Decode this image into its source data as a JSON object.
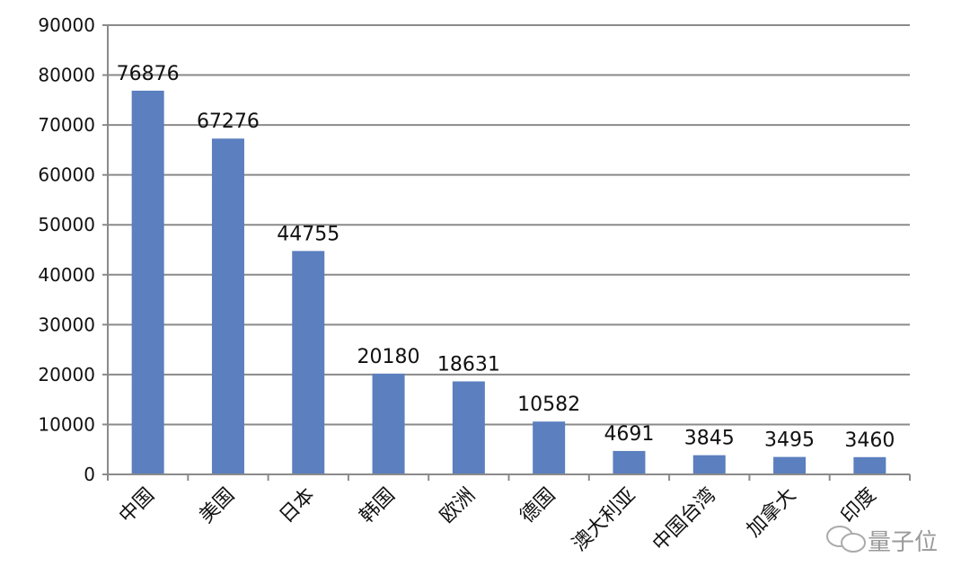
{
  "chart_data": {
    "type": "bar",
    "title": "",
    "xlabel": "",
    "ylabel": "",
    "categories": [
      "中国",
      "美国",
      "日本",
      "韩国",
      "欧洲",
      "德国",
      "澳大利亚",
      "中国台湾",
      "加拿大",
      "印度"
    ],
    "values": [
      76876,
      67276,
      44755,
      20180,
      18631,
      10582,
      4691,
      3845,
      3495,
      3460
    ],
    "ylim": [
      0,
      90000
    ],
    "yticks": [
      0,
      10000,
      20000,
      30000,
      40000,
      50000,
      60000,
      70000,
      80000,
      90000
    ],
    "grid": true,
    "data_labels": true,
    "bar_color": "#5b7fbf"
  },
  "watermark": {
    "text": "量子位",
    "icon": "wechat-icon"
  }
}
